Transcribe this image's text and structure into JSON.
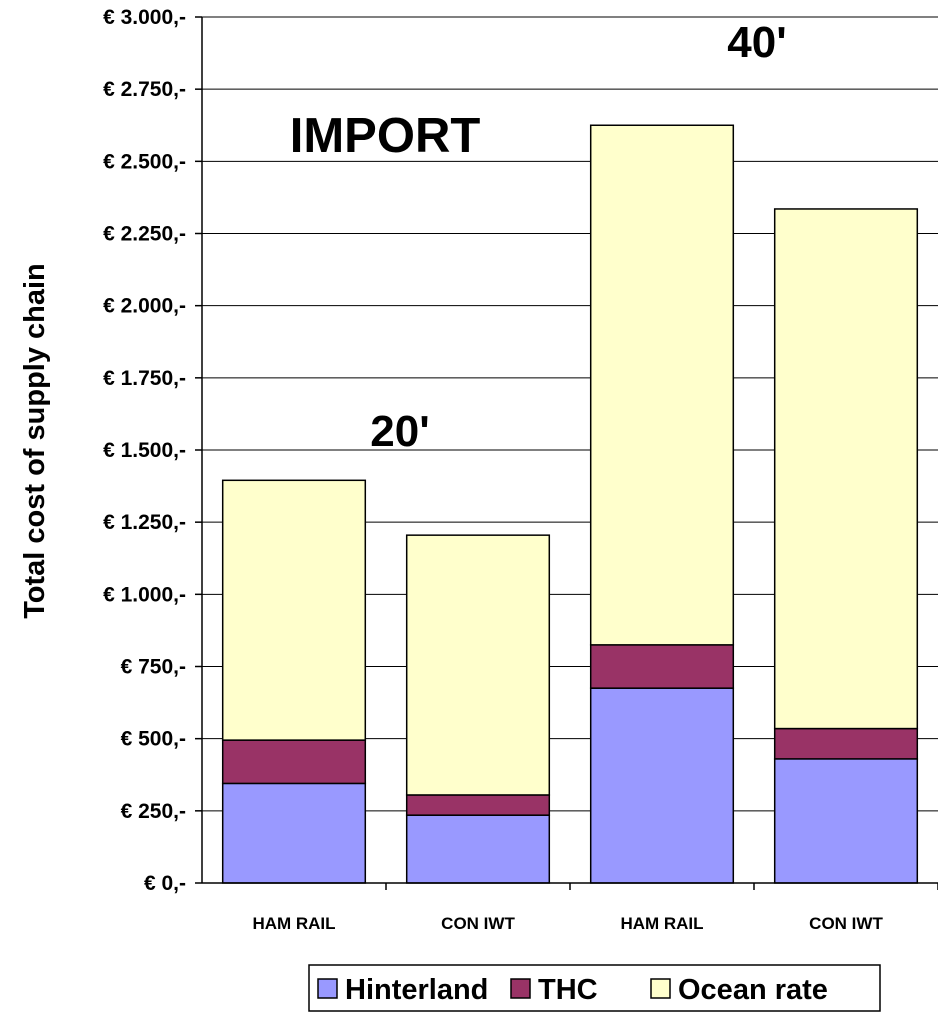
{
  "chart_data": {
    "type": "bar",
    "stacked": true,
    "categories": [
      "HAM RAIL",
      "CON IWT",
      "HAM RAIL",
      "CON IWT"
    ],
    "series": [
      {
        "name": "Hinterland",
        "color": "#9999ff",
        "values": [
          345,
          235,
          675,
          430
        ]
      },
      {
        "name": "THC",
        "color": "#993366",
        "values": [
          150,
          70,
          150,
          105
        ]
      },
      {
        "name": "Ocean rate",
        "color": "#ffffcc",
        "values": [
          900,
          900,
          1800,
          1800
        ]
      }
    ],
    "title": "",
    "xlabel": "",
    "ylabel": "Total cost of supply chain",
    "ylim": [
      0,
      3000
    ],
    "yticks": [
      0,
      250,
      500,
      750,
      1000,
      1250,
      1500,
      1750,
      2000,
      2250,
      2500,
      2750,
      3000
    ],
    "ytick_labels": [
      "€ 0,-",
      "€ 250,-",
      "€ 500,-",
      "€ 750,-",
      "€ 1.000,-",
      "€ 1.250,-",
      "€ 1.500,-",
      "€ 1.750,-",
      "€ 2.000,-",
      "€ 2.250,-",
      "€ 2.500,-",
      "€ 2.750,-",
      "€ 3.000,-"
    ],
    "grid": true,
    "legend_position": "bottom",
    "annotations": [
      "IMPORT",
      "20'",
      "40'"
    ]
  }
}
